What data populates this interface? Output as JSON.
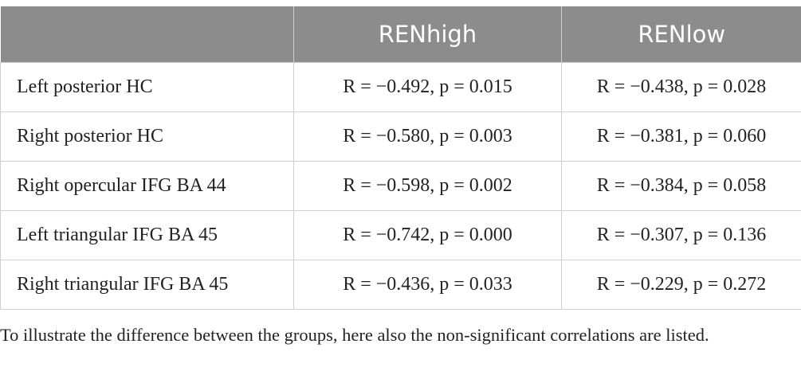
{
  "table": {
    "columns": [
      "RENhigh",
      "RENlow"
    ],
    "rows": [
      [
        "Left posterior HC",
        "R = −0.492, p = 0.015",
        "R = −0.438, p = 0.028"
      ],
      [
        "Right posterior HC",
        "R = −0.580, p = 0.003",
        "R = −0.381, p = 0.060"
      ],
      [
        "Right opercular IFG BA 44",
        "R = −0.598, p = 0.002",
        "R = −0.384, p = 0.058"
      ],
      [
        "Left triangular IFG BA 45",
        "R = −0.742, p = 0.000",
        "R = −0.307, p = 0.136"
      ],
      [
        "Right triangular IFG BA 45",
        "R = −0.436, p = 0.033",
        "R = −0.229, p = 0.272"
      ]
    ]
  },
  "footnote": "To illustrate the difference between the groups, here also the non-significant correlations are listed."
}
